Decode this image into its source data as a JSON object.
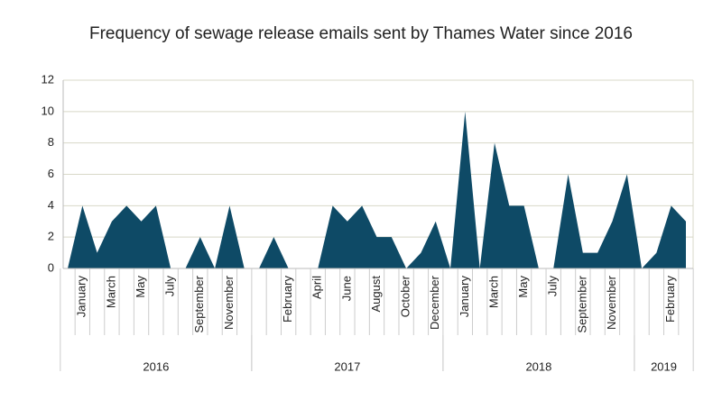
{
  "chart_data": {
    "type": "area",
    "title": "Frequency of sewage release emails sent by Thames Water since 2016",
    "categories": [
      null,
      "January",
      null,
      "March",
      null,
      "May",
      null,
      "July",
      null,
      "September",
      null,
      "November",
      null,
      null,
      null,
      "February",
      null,
      "April",
      null,
      "June",
      null,
      "August",
      null,
      "October",
      null,
      "December",
      null,
      "January",
      null,
      "March",
      null,
      "May",
      null,
      "July",
      null,
      "September",
      null,
      "November",
      null,
      null,
      null,
      "February",
      null
    ],
    "values": [
      0,
      4,
      1,
      3,
      4,
      3,
      4,
      0,
      0,
      2,
      0,
      4,
      0,
      0,
      2,
      0,
      0,
      0,
      4,
      3,
      4,
      2,
      2,
      0,
      1,
      3,
      0,
      10,
      0,
      8,
      4,
      4,
      0,
      0,
      6,
      1,
      1,
      3,
      6,
      0,
      1,
      4,
      3
    ],
    "groups": [
      {
        "label": "2016",
        "count": 13
      },
      {
        "label": "2017",
        "count": 13
      },
      {
        "label": "2018",
        "count": 13
      },
      {
        "label": "2019",
        "count": 4
      }
    ],
    "color": "#0e4a66",
    "ylim": [
      0,
      12
    ],
    "yticks": [
      0,
      2,
      4,
      6,
      8,
      10,
      12
    ],
    "grid": true
  }
}
